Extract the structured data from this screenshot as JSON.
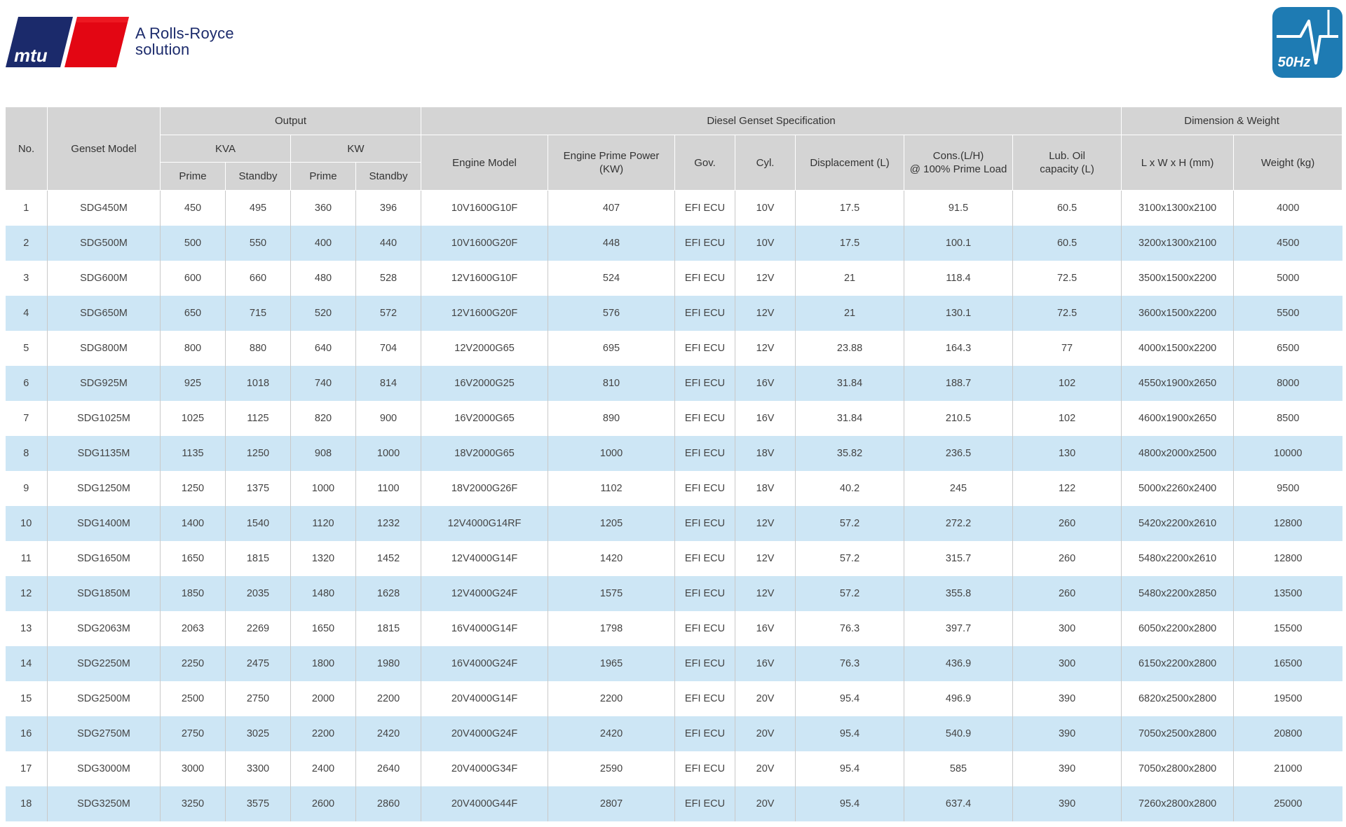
{
  "header": {
    "brand_logo_text": "mtu",
    "tagline_line1": "A Rolls-Royce",
    "tagline_line2": "solution",
    "frequency_badge": "50Hz"
  },
  "table": {
    "groups": {
      "no": "No.",
      "genset_model": "Genset Model",
      "output": "Output",
      "diesel_spec": "Diesel Genset Specification",
      "dimension_weight": "Dimension & Weight"
    },
    "subgroups": {
      "kva": "KVA",
      "kw": "KW"
    },
    "columns": {
      "kva_prime": "Prime",
      "kva_standby": "Standby",
      "kw_prime": "Prime",
      "kw_standby": "Standby",
      "engine_model": "Engine Model",
      "engine_prime_power": "Engine Prime Power\n(KW)",
      "gov": "Gov.",
      "cyl": "Cyl.",
      "displacement": "Displacement (L)",
      "consumption": "Cons.(L/H)\n@ 100% Prime Load",
      "lub_oil": "Lub. Oil\ncapacity (L)",
      "dimensions": "L x W x H (mm)",
      "weight": "Weight (kg)"
    },
    "rows": [
      [
        "1",
        "SDG450M",
        "450",
        "495",
        "360",
        "396",
        "10V1600G10F",
        "407",
        "EFI ECU",
        "10V",
        "17.5",
        "91.5",
        "60.5",
        "3100x1300x2100",
        "4000"
      ],
      [
        "2",
        "SDG500M",
        "500",
        "550",
        "400",
        "440",
        "10V1600G20F",
        "448",
        "EFI ECU",
        "10V",
        "17.5",
        "100.1",
        "60.5",
        "3200x1300x2100",
        "4500"
      ],
      [
        "3",
        "SDG600M",
        "600",
        "660",
        "480",
        "528",
        "12V1600G10F",
        "524",
        "EFI ECU",
        "12V",
        "21",
        "118.4",
        "72.5",
        "3500x1500x2200",
        "5000"
      ],
      [
        "4",
        "SDG650M",
        "650",
        "715",
        "520",
        "572",
        "12V1600G20F",
        "576",
        "EFI ECU",
        "12V",
        "21",
        "130.1",
        "72.5",
        "3600x1500x2200",
        "5500"
      ],
      [
        "5",
        "SDG800M",
        "800",
        "880",
        "640",
        "704",
        "12V2000G65",
        "695",
        "EFI ECU",
        "12V",
        "23.88",
        "164.3",
        "77",
        "4000x1500x2200",
        "6500"
      ],
      [
        "6",
        "SDG925M",
        "925",
        "1018",
        "740",
        "814",
        "16V2000G25",
        "810",
        "EFI ECU",
        "16V",
        "31.84",
        "188.7",
        "102",
        "4550x1900x2650",
        "8000"
      ],
      [
        "7",
        "SDG1025M",
        "1025",
        "1125",
        "820",
        "900",
        "16V2000G65",
        "890",
        "EFI ECU",
        "16V",
        "31.84",
        "210.5",
        "102",
        "4600x1900x2650",
        "8500"
      ],
      [
        "8",
        "SDG1135M",
        "1135",
        "1250",
        "908",
        "1000",
        "18V2000G65",
        "1000",
        "EFI ECU",
        "18V",
        "35.82",
        "236.5",
        "130",
        "4800x2000x2500",
        "10000"
      ],
      [
        "9",
        "SDG1250M",
        "1250",
        "1375",
        "1000",
        "1100",
        "18V2000G26F",
        "1102",
        "EFI ECU",
        "18V",
        "40.2",
        "245",
        "122",
        "5000x2260x2400",
        "9500"
      ],
      [
        "10",
        "SDG1400M",
        "1400",
        "1540",
        "1120",
        "1232",
        "12V4000G14RF",
        "1205",
        "EFI ECU",
        "12V",
        "57.2",
        "272.2",
        "260",
        "5420x2200x2610",
        "12800"
      ],
      [
        "11",
        "SDG1650M",
        "1650",
        "1815",
        "1320",
        "1452",
        "12V4000G14F",
        "1420",
        "EFI ECU",
        "12V",
        "57.2",
        "315.7",
        "260",
        "5480x2200x2610",
        "12800"
      ],
      [
        "12",
        "SDG1850M",
        "1850",
        "2035",
        "1480",
        "1628",
        "12V4000G24F",
        "1575",
        "EFI ECU",
        "12V",
        "57.2",
        "355.8",
        "260",
        "5480x2200x2850",
        "13500"
      ],
      [
        "13",
        "SDG2063M",
        "2063",
        "2269",
        "1650",
        "1815",
        "16V4000G14F",
        "1798",
        "EFI ECU",
        "16V",
        "76.3",
        "397.7",
        "300",
        "6050x2200x2800",
        "15500"
      ],
      [
        "14",
        "SDG2250M",
        "2250",
        "2475",
        "1800",
        "1980",
        "16V4000G24F",
        "1965",
        "EFI ECU",
        "16V",
        "76.3",
        "436.9",
        "300",
        "6150x2200x2800",
        "16500"
      ],
      [
        "15",
        "SDG2500M",
        "2500",
        "2750",
        "2000",
        "2200",
        "20V4000G14F",
        "2200",
        "EFI ECU",
        "20V",
        "95.4",
        "496.9",
        "390",
        "6820x2500x2800",
        "19500"
      ],
      [
        "16",
        "SDG2750M",
        "2750",
        "3025",
        "2200",
        "2420",
        "20V4000G24F",
        "2420",
        "EFI ECU",
        "20V",
        "95.4",
        "540.9",
        "390",
        "7050x2500x2800",
        "20800"
      ],
      [
        "17",
        "SDG3000M",
        "3000",
        "3300",
        "2400",
        "2640",
        "20V4000G34F",
        "2590",
        "EFI ECU",
        "20V",
        "95.4",
        "585",
        "390",
        "7050x2800x2800",
        "21000"
      ],
      [
        "18",
        "SDG3250M",
        "3250",
        "3575",
        "2600",
        "2860",
        "20V4000G44F",
        "2807",
        "EFI ECU",
        "20V",
        "95.4",
        "637.4",
        "390",
        "7260x2800x2800",
        "25000"
      ]
    ]
  },
  "colors": {
    "header_bg": "#d4d4d4",
    "row_alt_bg": "#cde6f5",
    "brand_blue": "#1b2a6b",
    "brand_red": "#e30613",
    "badge_blue": "#1e7bb3"
  }
}
